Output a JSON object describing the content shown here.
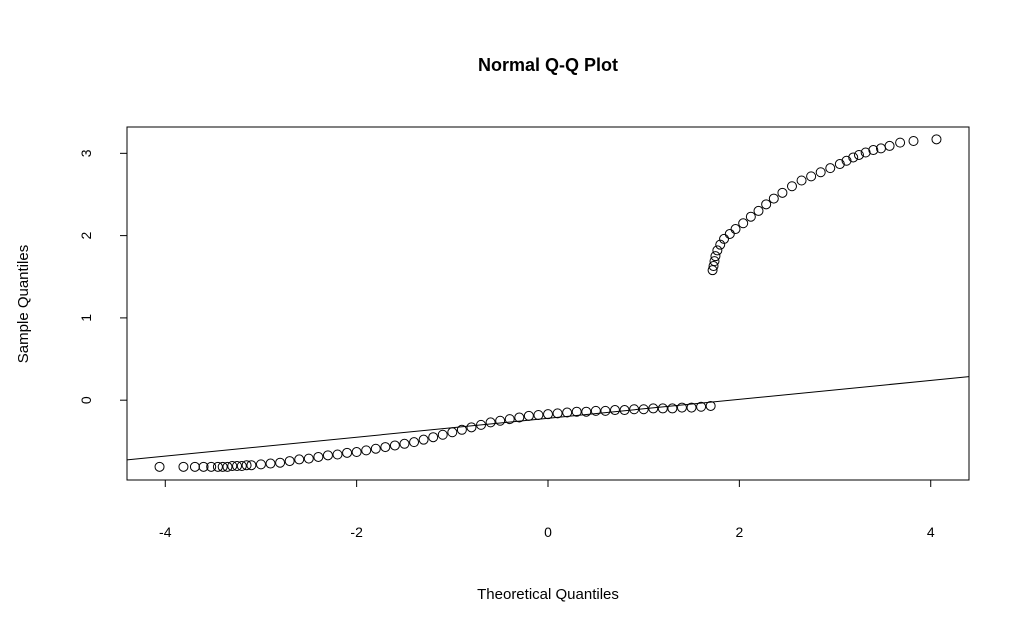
{
  "chart_data": {
    "type": "scatter",
    "title": "Normal Q-Q Plot",
    "xlabel": "Theoretical Quantiles",
    "ylabel": "Sample Quantiles",
    "xlim": [
      -4.4,
      4.4
    ],
    "ylim": [
      -0.97,
      3.32
    ],
    "x_ticks": [
      -4,
      -2,
      0,
      2,
      4
    ],
    "x_tick_labels": [
      "-4",
      "-2",
      "0",
      "2",
      "4"
    ],
    "y_ticks": [
      0,
      1,
      2,
      3
    ],
    "y_tick_labels": [
      "0",
      "1",
      "2",
      "3"
    ],
    "grid": false,
    "legend": "none",
    "reference_line": {
      "intercept": -0.22,
      "slope": 0.115
    },
    "series": [
      {
        "points": [
          [
            -4.06,
            -0.81
          ],
          [
            -3.81,
            -0.81
          ],
          [
            -3.69,
            -0.81
          ],
          [
            -3.6,
            -0.81
          ],
          [
            -3.52,
            -0.81
          ],
          [
            -3.45,
            -0.81
          ],
          [
            -3.4,
            -0.81
          ],
          [
            -3.35,
            -0.81
          ],
          [
            -3.3,
            -0.8
          ],
          [
            -3.25,
            -0.8
          ],
          [
            -3.2,
            -0.8
          ],
          [
            -3.15,
            -0.79
          ],
          [
            -3.1,
            -0.79
          ],
          [
            -3.0,
            -0.78
          ],
          [
            -2.9,
            -0.77
          ],
          [
            -2.8,
            -0.76
          ],
          [
            -2.7,
            -0.74
          ],
          [
            -2.6,
            -0.72
          ],
          [
            -2.5,
            -0.71
          ],
          [
            -2.4,
            -0.69
          ],
          [
            -2.3,
            -0.67
          ],
          [
            -2.2,
            -0.66
          ],
          [
            -2.1,
            -0.64
          ],
          [
            -2.0,
            -0.63
          ],
          [
            -1.9,
            -0.61
          ],
          [
            -1.8,
            -0.59
          ],
          [
            -1.7,
            -0.57
          ],
          [
            -1.6,
            -0.55
          ],
          [
            -1.5,
            -0.53
          ],
          [
            -1.4,
            -0.51
          ],
          [
            -1.3,
            -0.48
          ],
          [
            -1.2,
            -0.45
          ],
          [
            -1.1,
            -0.42
          ],
          [
            -1.0,
            -0.39
          ],
          [
            -0.9,
            -0.36
          ],
          [
            -0.8,
            -0.33
          ],
          [
            -0.7,
            -0.3
          ],
          [
            -0.6,
            -0.27
          ],
          [
            -0.5,
            -0.25
          ],
          [
            -0.4,
            -0.23
          ],
          [
            -0.3,
            -0.21
          ],
          [
            -0.2,
            -0.19
          ],
          [
            -0.1,
            -0.18
          ],
          [
            0.0,
            -0.17
          ],
          [
            0.1,
            -0.16
          ],
          [
            0.2,
            -0.15
          ],
          [
            0.3,
            -0.14
          ],
          [
            0.4,
            -0.14
          ],
          [
            0.5,
            -0.13
          ],
          [
            0.6,
            -0.13
          ],
          [
            0.7,
            -0.12
          ],
          [
            0.8,
            -0.12
          ],
          [
            0.9,
            -0.11
          ],
          [
            1.0,
            -0.11
          ],
          [
            1.1,
            -0.1
          ],
          [
            1.2,
            -0.1
          ],
          [
            1.3,
            -0.1
          ],
          [
            1.4,
            -0.09
          ],
          [
            1.5,
            -0.09
          ],
          [
            1.6,
            -0.08
          ],
          [
            1.7,
            -0.07
          ],
          [
            1.72,
            1.58
          ],
          [
            1.73,
            1.63
          ],
          [
            1.74,
            1.69
          ],
          [
            1.75,
            1.75
          ],
          [
            1.77,
            1.82
          ],
          [
            1.8,
            1.89
          ],
          [
            1.84,
            1.96
          ],
          [
            1.9,
            2.02
          ],
          [
            1.96,
            2.08
          ],
          [
            2.04,
            2.15
          ],
          [
            2.12,
            2.23
          ],
          [
            2.2,
            2.3
          ],
          [
            2.28,
            2.38
          ],
          [
            2.36,
            2.45
          ],
          [
            2.45,
            2.52
          ],
          [
            2.55,
            2.6
          ],
          [
            2.65,
            2.67
          ],
          [
            2.75,
            2.72
          ],
          [
            2.85,
            2.77
          ],
          [
            2.95,
            2.82
          ],
          [
            3.05,
            2.87
          ],
          [
            3.12,
            2.91
          ],
          [
            3.19,
            2.95
          ],
          [
            3.25,
            2.98
          ],
          [
            3.32,
            3.01
          ],
          [
            3.4,
            3.04
          ],
          [
            3.48,
            3.06
          ],
          [
            3.57,
            3.09
          ],
          [
            3.68,
            3.13
          ],
          [
            3.82,
            3.15
          ],
          [
            4.06,
            3.17
          ]
        ]
      }
    ]
  }
}
